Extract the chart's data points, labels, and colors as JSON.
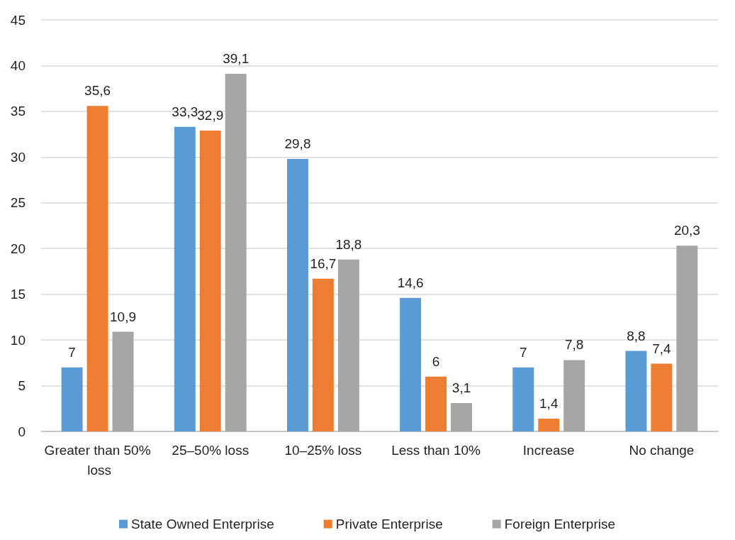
{
  "chart_data": {
    "type": "bar",
    "categories": [
      "Greater than 50% loss",
      "25–50% loss",
      "10–25% loss",
      "Less than 10%",
      "Increase",
      "No change"
    ],
    "series": [
      {
        "name": "State Owned Enterprise",
        "color": "#5b9bd5",
        "values": [
          7,
          33.3,
          29.8,
          14.6,
          7,
          8.8
        ],
        "value_labels": [
          "7",
          "33,3",
          "29,8",
          "14,6",
          "7",
          "8,8"
        ]
      },
      {
        "name": "Private Enterprise",
        "color": "#ed7d31",
        "values": [
          35.6,
          32.9,
          16.7,
          6,
          1.4,
          7.4
        ],
        "value_labels": [
          "35,6",
          "32,9",
          "16,7",
          "6",
          "1,4",
          "7,4"
        ]
      },
      {
        "name": "Foreign Enterprise",
        "color": "#a5a5a5",
        "values": [
          10.9,
          39.1,
          18.8,
          3.1,
          7.8,
          20.3
        ],
        "value_labels": [
          "10,9",
          "39,1",
          "18,8",
          "3,1",
          "7,8",
          "20,3"
        ]
      }
    ],
    "ylim": [
      0,
      45
    ],
    "yticks": [
      0,
      5,
      10,
      15,
      20,
      25,
      30,
      35,
      40,
      45
    ],
    "grid": "y",
    "legend": "bottom"
  }
}
